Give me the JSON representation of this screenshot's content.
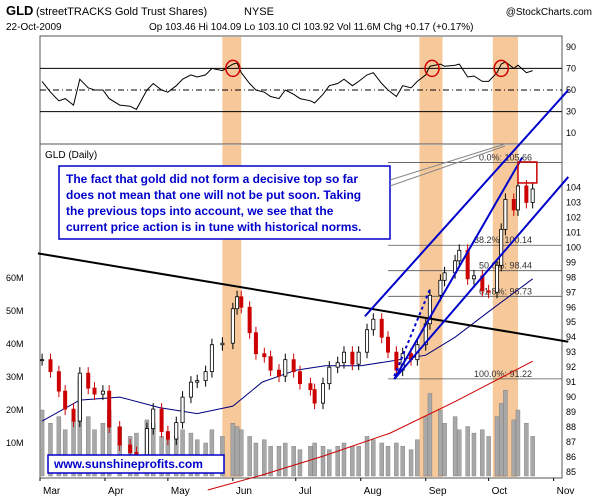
{
  "header": {
    "ticker": "GLD",
    "name": "(streetTRACKS Gold Trust Shares)",
    "exchange": "NYSE",
    "date": "22-Oct-2009",
    "quote": "Op 103.46  Hi 104.09  Lo 103.10  Cl 103.92  Vol 11.6M  Chg +0.17 (+0.17%)",
    "watermark": "@StockCharts.com"
  },
  "panel_label": "GLD (Daily)",
  "annotation_lines": [
    "The fact that gold did not form a decisive top so far",
    "does not mean that one will not be put soon. Taking",
    "the previous tops into account, we see that the",
    "current price action is in tune with historical norms."
  ],
  "website": "www.sunshineprofits.com",
  "colors": {
    "highlight": "#f6c89a",
    "up_candle": "#000000",
    "down_candle": "#cc0000",
    "ma_short": "#000080",
    "ma_long": "#cc0000",
    "trendline": "#000000",
    "channel": "#0000cc",
    "circle": "#cc0000",
    "volume": "#a8a8a8"
  },
  "chart_data": {
    "type": "line",
    "x_range": [
      "2009-03-01",
      "2009-11-05"
    ],
    "month_labels": [
      "Mar",
      "Apr",
      "May",
      "Jun",
      "Jul",
      "Aug",
      "Sep",
      "Oct",
      "Nov"
    ],
    "price_axis": {
      "ylim": [
        84.6,
        106.9
      ],
      "ticks": [
        85,
        86,
        87,
        88,
        89,
        90,
        91,
        92,
        93,
        94,
        95,
        96,
        97,
        98,
        99,
        100,
        101,
        102,
        103,
        104
      ]
    },
    "rsi_axis": {
      "ylim": [
        0,
        100
      ],
      "ticks": [
        10,
        30,
        50,
        70,
        90
      ],
      "reference_levels": [
        30,
        50,
        70
      ]
    },
    "volume_axis": {
      "unit": "M",
      "ticks": [
        "10M",
        "20M",
        "30M",
        "40M",
        "50M",
        "60M"
      ]
    },
    "fib_levels": [
      {
        "label": "0.0%: 105.66",
        "value": 105.66
      },
      {
        "label": "38.2%: 100.14",
        "value": 100.14
      },
      {
        "label": "50.0%: 98.44",
        "value": 98.44
      },
      {
        "label": "61.8%: 96.73",
        "value": 96.73
      },
      {
        "label": "100.0%: 91.22",
        "value": 91.22
      }
    ],
    "highlight_periods": [
      [
        "2009-05-27",
        "2009-06-05"
      ],
      [
        "2009-08-29",
        "2009-09-09"
      ],
      [
        "2009-10-03",
        "2009-10-15"
      ]
    ],
    "rsi_circles": [
      "2009-06-01",
      "2009-09-04",
      "2009-10-07"
    ],
    "highlight_box": {
      "x": [
        "2009-10-15",
        "2009-10-24"
      ],
      "y": [
        104.3,
        105.7
      ]
    },
    "trendlines": [
      {
        "name": "declining resistance",
        "from": [
          "2009-02-28",
          99.6
        ],
        "to": [
          "2009-11-08",
          93.7
        ]
      },
      {
        "name": "channel upper",
        "from": [
          "2009-08-03",
          95.4
        ],
        "to": [
          "2009-11-08",
          110.5
        ]
      },
      {
        "name": "channel lower",
        "from": [
          "2009-08-17",
          91.2
        ],
        "to": [
          "2009-11-08",
          104.7
        ]
      },
      {
        "name": "channel mid",
        "from": [
          "2009-08-17",
          91.2
        ],
        "to": [
          "2009-10-17",
          106.0
        ]
      }
    ],
    "price_series": [
      [
        "2009-03-02",
        92.5
      ],
      [
        "2009-03-06",
        91.7
      ],
      [
        "2009-03-10",
        90.4
      ],
      [
        "2009-03-13",
        89.2
      ],
      [
        "2009-03-17",
        88.4
      ],
      [
        "2009-03-20",
        91.6
      ],
      [
        "2009-03-24",
        90.6
      ],
      [
        "2009-03-27",
        90.2
      ],
      [
        "2009-03-31",
        90.4
      ],
      [
        "2009-04-03",
        88.0
      ],
      [
        "2009-04-08",
        86.8
      ],
      [
        "2009-04-13",
        86.3
      ],
      [
        "2009-04-16",
        85.4
      ],
      [
        "2009-04-21",
        87.9
      ],
      [
        "2009-04-24",
        89.2
      ],
      [
        "2009-04-28",
        87.7
      ],
      [
        "2009-05-01",
        87.2
      ],
      [
        "2009-05-05",
        88.3
      ],
      [
        "2009-05-08",
        90.0
      ],
      [
        "2009-05-12",
        91.0
      ],
      [
        "2009-05-15",
        91.1
      ],
      [
        "2009-05-19",
        91.7
      ],
      [
        "2009-05-22",
        93.5
      ],
      [
        "2009-05-27",
        93.6
      ],
      [
        "2009-06-01",
        95.9
      ],
      [
        "2009-06-03",
        96.7
      ],
      [
        "2009-06-05",
        96.0
      ],
      [
        "2009-06-09",
        94.3
      ],
      [
        "2009-06-12",
        92.9
      ],
      [
        "2009-06-16",
        92.7
      ],
      [
        "2009-06-19",
        91.8
      ],
      [
        "2009-06-23",
        91.4
      ],
      [
        "2009-06-26",
        92.5
      ],
      [
        "2009-06-30",
        91.7
      ],
      [
        "2009-07-03",
        90.9
      ],
      [
        "2009-07-08",
        90.5
      ],
      [
        "2009-07-10",
        89.6
      ],
      [
        "2009-07-14",
        90.9
      ],
      [
        "2009-07-17",
        92.0
      ],
      [
        "2009-07-21",
        92.3
      ],
      [
        "2009-07-24",
        93.0
      ],
      [
        "2009-07-28",
        92.2
      ],
      [
        "2009-07-31",
        93.0
      ],
      [
        "2009-08-04",
        94.5
      ],
      [
        "2009-08-07",
        95.2
      ],
      [
        "2009-08-11",
        94.0
      ],
      [
        "2009-08-14",
        93.0
      ],
      [
        "2009-08-18",
        91.8
      ],
      [
        "2009-08-21",
        92.9
      ],
      [
        "2009-08-25",
        92.5
      ],
      [
        "2009-08-28",
        93.5
      ],
      [
        "2009-09-01",
        94.9
      ],
      [
        "2009-09-03",
        96.8
      ],
      [
        "2009-09-08",
        97.8
      ],
      [
        "2009-09-10",
        98.3
      ],
      [
        "2009-09-15",
        99.1
      ],
      [
        "2009-09-17",
        99.8
      ],
      [
        "2009-09-21",
        97.9
      ],
      [
        "2009-09-24",
        98.1
      ],
      [
        "2009-09-28",
        97.1
      ],
      [
        "2009-10-01",
        97.0
      ],
      [
        "2009-10-05",
        98.8
      ],
      [
        "2009-10-07",
        101.2
      ],
      [
        "2009-10-09",
        103.2
      ],
      [
        "2009-10-13",
        102.5
      ],
      [
        "2009-10-15",
        104.1
      ],
      [
        "2009-10-19",
        103.0
      ],
      [
        "2009-10-22",
        103.9
      ]
    ],
    "ma_short_series": [
      [
        "2009-03-02",
        88.4
      ],
      [
        "2009-03-20",
        89.8
      ],
      [
        "2009-04-08",
        90.0
      ],
      [
        "2009-04-27",
        89.3
      ],
      [
        "2009-05-15",
        88.9
      ],
      [
        "2009-06-01",
        89.4
      ],
      [
        "2009-06-15",
        91.0
      ],
      [
        "2009-07-01",
        91.8
      ],
      [
        "2009-07-15",
        92.1
      ],
      [
        "2009-08-01",
        92.1
      ],
      [
        "2009-08-15",
        92.4
      ],
      [
        "2009-09-01",
        92.8
      ],
      [
        "2009-09-15",
        94.0
      ],
      [
        "2009-10-01",
        95.7
      ],
      [
        "2009-10-22",
        97.9
      ]
    ],
    "ma_long_series": [
      [
        "2009-05-20",
        83.8
      ],
      [
        "2009-06-15",
        84.8
      ],
      [
        "2009-07-15",
        86.1
      ],
      [
        "2009-08-15",
        87.6
      ],
      [
        "2009-09-15",
        89.7
      ],
      [
        "2009-10-22",
        92.4
      ]
    ],
    "rsi_series": [
      [
        "2009-03-02",
        58
      ],
      [
        "2009-03-06",
        48
      ],
      [
        "2009-03-10",
        40
      ],
      [
        "2009-03-13",
        42
      ],
      [
        "2009-03-17",
        36
      ],
      [
        "2009-03-20",
        60
      ],
      [
        "2009-03-24",
        52
      ],
      [
        "2009-03-27",
        50
      ],
      [
        "2009-03-31",
        50
      ],
      [
        "2009-04-03",
        42
      ],
      [
        "2009-04-08",
        36
      ],
      [
        "2009-04-13",
        35
      ],
      [
        "2009-04-16",
        32
      ],
      [
        "2009-04-21",
        50
      ],
      [
        "2009-04-24",
        56
      ],
      [
        "2009-04-28",
        50
      ],
      [
        "2009-05-01",
        48
      ],
      [
        "2009-05-05",
        54
      ],
      [
        "2009-05-08",
        60
      ],
      [
        "2009-05-12",
        64
      ],
      [
        "2009-05-15",
        62
      ],
      [
        "2009-05-19",
        64
      ],
      [
        "2009-05-22",
        70
      ],
      [
        "2009-05-27",
        68
      ],
      [
        "2009-06-01",
        74
      ],
      [
        "2009-06-03",
        75
      ],
      [
        "2009-06-05",
        66
      ],
      [
        "2009-06-09",
        56
      ],
      [
        "2009-06-12",
        50
      ],
      [
        "2009-06-16",
        48
      ],
      [
        "2009-06-19",
        44
      ],
      [
        "2009-06-23",
        42
      ],
      [
        "2009-06-26",
        50
      ],
      [
        "2009-06-30",
        46
      ],
      [
        "2009-07-03",
        42
      ],
      [
        "2009-07-08",
        40
      ],
      [
        "2009-07-10",
        38
      ],
      [
        "2009-07-14",
        46
      ],
      [
        "2009-07-17",
        54
      ],
      [
        "2009-07-21",
        56
      ],
      [
        "2009-07-24",
        60
      ],
      [
        "2009-07-28",
        54
      ],
      [
        "2009-07-31",
        58
      ],
      [
        "2009-08-04",
        64
      ],
      [
        "2009-08-07",
        66
      ],
      [
        "2009-08-11",
        56
      ],
      [
        "2009-08-14",
        50
      ],
      [
        "2009-08-18",
        44
      ],
      [
        "2009-08-21",
        54
      ],
      [
        "2009-08-25",
        52
      ],
      [
        "2009-08-28",
        58
      ],
      [
        "2009-09-01",
        64
      ],
      [
        "2009-09-03",
        72
      ],
      [
        "2009-09-08",
        74
      ],
      [
        "2009-09-10",
        72
      ],
      [
        "2009-09-15",
        73
      ],
      [
        "2009-09-17",
        74
      ],
      [
        "2009-09-21",
        62
      ],
      [
        "2009-09-24",
        63
      ],
      [
        "2009-09-28",
        58
      ],
      [
        "2009-10-01",
        58
      ],
      [
        "2009-10-05",
        66
      ],
      [
        "2009-10-07",
        74
      ],
      [
        "2009-10-09",
        76
      ],
      [
        "2009-10-13",
        70
      ],
      [
        "2009-10-15",
        73
      ],
      [
        "2009-10-19",
        66
      ],
      [
        "2009-10-22",
        68
      ]
    ],
    "volume_series": [
      [
        "2009-03-02",
        20
      ],
      [
        "2009-03-06",
        16
      ],
      [
        "2009-03-10",
        18
      ],
      [
        "2009-03-13",
        14
      ],
      [
        "2009-03-17",
        17
      ],
      [
        "2009-03-20",
        30
      ],
      [
        "2009-03-24",
        18
      ],
      [
        "2009-03-27",
        14
      ],
      [
        "2009-03-31",
        16
      ],
      [
        "2009-04-03",
        20
      ],
      [
        "2009-04-08",
        15
      ],
      [
        "2009-04-13",
        12
      ],
      [
        "2009-04-16",
        13
      ],
      [
        "2009-04-21",
        17
      ],
      [
        "2009-04-24",
        16
      ],
      [
        "2009-04-28",
        12
      ],
      [
        "2009-05-01",
        11
      ],
      [
        "2009-05-05",
        12
      ],
      [
        "2009-05-08",
        14
      ],
      [
        "2009-05-12",
        13
      ],
      [
        "2009-05-15",
        11
      ],
      [
        "2009-05-19",
        10
      ],
      [
        "2009-05-22",
        14
      ],
      [
        "2009-05-27",
        12
      ],
      [
        "2009-06-01",
        16
      ],
      [
        "2009-06-03",
        15
      ],
      [
        "2009-06-05",
        14
      ],
      [
        "2009-06-09",
        12
      ],
      [
        "2009-06-12",
        10
      ],
      [
        "2009-06-16",
        11
      ],
      [
        "2009-06-19",
        9
      ],
      [
        "2009-06-23",
        9
      ],
      [
        "2009-06-26",
        10
      ],
      [
        "2009-06-30",
        9
      ],
      [
        "2009-07-03",
        8
      ],
      [
        "2009-07-08",
        9
      ],
      [
        "2009-07-10",
        10
      ],
      [
        "2009-07-14",
        9
      ],
      [
        "2009-07-17",
        8
      ],
      [
        "2009-07-21",
        9
      ],
      [
        "2009-07-24",
        10
      ],
      [
        "2009-07-28",
        9
      ],
      [
        "2009-07-31",
        9
      ],
      [
        "2009-08-04",
        12
      ],
      [
        "2009-08-07",
        11
      ],
      [
        "2009-08-11",
        10
      ],
      [
        "2009-08-14",
        9
      ],
      [
        "2009-08-18",
        10
      ],
      [
        "2009-08-21",
        9
      ],
      [
        "2009-08-25",
        8
      ],
      [
        "2009-08-28",
        11
      ],
      [
        "2009-09-01",
        18
      ],
      [
        "2009-09-03",
        25
      ],
      [
        "2009-09-08",
        20
      ],
      [
        "2009-09-10",
        16
      ],
      [
        "2009-09-15",
        18
      ],
      [
        "2009-09-17",
        14
      ],
      [
        "2009-09-21",
        15
      ],
      [
        "2009-09-24",
        13
      ],
      [
        "2009-09-28",
        14
      ],
      [
        "2009-10-01",
        12
      ],
      [
        "2009-10-05",
        18
      ],
      [
        "2009-10-07",
        22
      ],
      [
        "2009-10-09",
        26
      ],
      [
        "2009-10-13",
        17
      ],
      [
        "2009-10-15",
        20
      ],
      [
        "2009-10-19",
        16
      ],
      [
        "2009-10-22",
        12
      ]
    ]
  }
}
